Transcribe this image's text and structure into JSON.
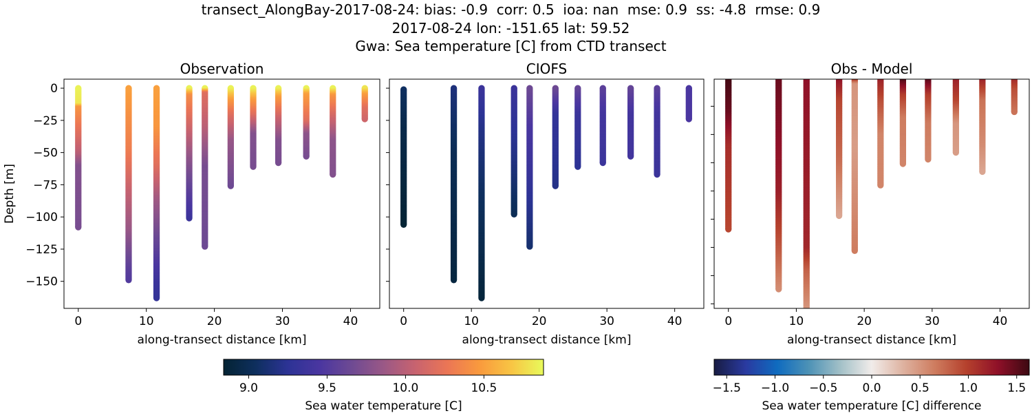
{
  "suptitle": {
    "line1": "transect_AlongBay-2017-08-24: bias: -0.9  corr: 0.5  ioa: nan  mse: 0.9  ss: -4.8  rmse: 0.9",
    "line2": "2017-08-24 lon: -151.65 lat: 59.52",
    "line3": "Gwa: Sea temperature [C] from CTD transect"
  },
  "chart_data": [
    {
      "type": "scatter",
      "title": "Observation",
      "xlabel": "along-transect distance [km]",
      "ylabel": "Depth [m]",
      "xlim": [
        -2.1,
        44.3
      ],
      "ylim": [
        -171,
        7
      ],
      "xticks": [
        0,
        10,
        20,
        30,
        40
      ],
      "yticks": [
        0,
        -25,
        -50,
        -75,
        -100,
        -125,
        -150
      ],
      "ytick_labels_shown": true,
      "colormap": "thermal",
      "casts": [
        {
          "x": 0,
          "profile": [
            [
              0,
              10.85
            ],
            [
              -12,
              10.8
            ],
            [
              -14,
              10.45
            ],
            [
              -30,
              10.25
            ],
            [
              -50,
              10.0
            ],
            [
              -60,
              9.75
            ],
            [
              -108,
              9.7
            ]
          ]
        },
        {
          "x": 7.4,
          "profile": [
            [
              0,
              10.5
            ],
            [
              -50,
              10.3
            ],
            [
              -80,
              10.05
            ],
            [
              -110,
              9.85
            ],
            [
              -140,
              9.55
            ],
            [
              -149,
              9.5
            ]
          ]
        },
        {
          "x": 11.5,
          "profile": [
            [
              0,
              10.5
            ],
            [
              -30,
              10.45
            ],
            [
              -60,
              10.2
            ],
            [
              -85,
              9.9
            ],
            [
              -120,
              9.6
            ],
            [
              -150,
              9.35
            ],
            [
              -163,
              9.3
            ]
          ]
        },
        {
          "x": 16.3,
          "profile": [
            [
              0,
              10.85
            ],
            [
              -5,
              10.4
            ],
            [
              -30,
              10.1
            ],
            [
              -55,
              9.8
            ],
            [
              -75,
              9.6
            ],
            [
              -101,
              9.35
            ]
          ]
        },
        {
          "x": 18.6,
          "profile": [
            [
              0,
              10.85
            ],
            [
              -3,
              10.2
            ],
            [
              -30,
              10.0
            ],
            [
              -60,
              9.7
            ],
            [
              -123,
              9.65
            ]
          ]
        },
        {
          "x": 22.4,
          "profile": [
            [
              0,
              10.85
            ],
            [
              -8,
              10.5
            ],
            [
              -20,
              10.2
            ],
            [
              -40,
              9.85
            ],
            [
              -76,
              9.65
            ]
          ]
        },
        {
          "x": 25.7,
          "profile": [
            [
              0,
              10.85
            ],
            [
              -8,
              10.5
            ],
            [
              -20,
              10.2
            ],
            [
              -35,
              9.75
            ],
            [
              -61,
              9.7
            ]
          ]
        },
        {
          "x": 29.4,
          "profile": [
            [
              0,
              10.85
            ],
            [
              -6,
              10.5
            ],
            [
              -22,
              10.1
            ],
            [
              -40,
              9.75
            ],
            [
              -58,
              9.7
            ]
          ]
        },
        {
          "x": 33.5,
          "profile": [
            [
              0,
              10.85
            ],
            [
              -4,
              10.5
            ],
            [
              -25,
              10.2
            ],
            [
              -35,
              9.8
            ],
            [
              -53,
              9.7
            ]
          ]
        },
        {
          "x": 37.4,
          "profile": [
            [
              0,
              10.85
            ],
            [
              -5,
              10.45
            ],
            [
              -20,
              10.15
            ],
            [
              -40,
              9.8
            ],
            [
              -67,
              9.75
            ]
          ]
        },
        {
          "x": 42.1,
          "profile": [
            [
              0,
              10.8
            ],
            [
              -4,
              10.5
            ],
            [
              -15,
              10.2
            ],
            [
              -24,
              10.1
            ]
          ]
        }
      ]
    },
    {
      "type": "scatter",
      "title": "CIOFS",
      "xlabel": "along-transect distance [km]",
      "xlim": [
        -2.1,
        44.3
      ],
      "ylim": [
        -171,
        7
      ],
      "xticks": [
        0,
        10,
        20,
        30,
        40
      ],
      "yticks": [
        0,
        -25,
        -50,
        -75,
        -100,
        -125,
        -150
      ],
      "ytick_labels_shown": false,
      "colormap": "thermal",
      "casts": [
        {
          "x": 0,
          "profile": [
            [
              -1,
              9.05
            ],
            [
              -30,
              8.95
            ],
            [
              -106,
              8.85
            ]
          ]
        },
        {
          "x": 7.4,
          "profile": [
            [
              0,
              9.15
            ],
            [
              -50,
              9.0
            ],
            [
              -149,
              8.9
            ]
          ]
        },
        {
          "x": 11.5,
          "profile": [
            [
              0,
              9.35
            ],
            [
              -30,
              9.2
            ],
            [
              -80,
              9.05
            ],
            [
              -163,
              8.88
            ]
          ]
        },
        {
          "x": 16.3,
          "profile": [
            [
              0,
              9.35
            ],
            [
              -50,
              9.2
            ],
            [
              -98,
              9.0
            ]
          ]
        },
        {
          "x": 18.6,
          "profile": [
            [
              0,
              9.65
            ],
            [
              -30,
              9.45
            ],
            [
              -60,
              9.35
            ],
            [
              -123,
              9.1
            ]
          ]
        },
        {
          "x": 22.4,
          "profile": [
            [
              0,
              9.65
            ],
            [
              -20,
              9.3
            ],
            [
              -76,
              9.2
            ]
          ]
        },
        {
          "x": 25.7,
          "profile": [
            [
              0,
              9.6
            ],
            [
              -20,
              9.35
            ],
            [
              -61,
              9.25
            ]
          ]
        },
        {
          "x": 29.4,
          "profile": [
            [
              0,
              9.55
            ],
            [
              -20,
              9.4
            ],
            [
              -58,
              9.35
            ]
          ]
        },
        {
          "x": 33.5,
          "profile": [
            [
              0,
              9.6
            ],
            [
              -20,
              9.4
            ],
            [
              -53,
              9.4
            ]
          ]
        },
        {
          "x": 37.4,
          "profile": [
            [
              0,
              9.55
            ],
            [
              -20,
              9.4
            ],
            [
              -67,
              9.35
            ]
          ]
        },
        {
          "x": 42.1,
          "profile": [
            [
              0,
              9.45
            ],
            [
              -24,
              9.45
            ]
          ]
        }
      ]
    },
    {
      "type": "scatter",
      "title": "Obs - Model",
      "xlabel": "along-transect distance [km]",
      "xlim": [
        -2.1,
        44.3
      ],
      "ylim": [
        -204,
        -1
      ],
      "xticks": [
        0,
        10,
        20,
        30,
        40
      ],
      "yticks": [
        -25,
        -50,
        -75,
        -100,
        -125,
        -150,
        -175,
        -200
      ],
      "ytick_labels_shown": false,
      "colormap": "balance",
      "casts": [
        {
          "x": 0,
          "profile": [
            [
              0,
              1.6
            ],
            [
              -30,
              1.45
            ],
            [
              -60,
              1.1
            ],
            [
              -134,
              0.95
            ]
          ]
        },
        {
          "x": 7.4,
          "profile": [
            [
              0,
              1.45
            ],
            [
              -100,
              1.2
            ],
            [
              -150,
              0.85
            ],
            [
              -187,
              0.55
            ]
          ]
        },
        {
          "x": 11.5,
          "profile": [
            [
              0,
              1.3
            ],
            [
              -150,
              1.15
            ],
            [
              -170,
              0.8
            ],
            [
              -210,
              0.45
            ]
          ]
        },
        {
          "x": 16.3,
          "profile": [
            [
              0,
              1.3
            ],
            [
              -20,
              0.95
            ],
            [
              -70,
              0.75
            ],
            [
              -122,
              0.4
            ]
          ]
        },
        {
          "x": 18.6,
          "profile": [
            [
              0,
              1.2
            ],
            [
              -5,
              0.5
            ],
            [
              -60,
              0.45
            ],
            [
              -153,
              0.65
            ]
          ]
        },
        {
          "x": 22.4,
          "profile": [
            [
              0,
              1.2
            ],
            [
              -20,
              0.9
            ],
            [
              -50,
              0.6
            ],
            [
              -95,
              0.6
            ]
          ]
        },
        {
          "x": 25.7,
          "profile": [
            [
              0,
              1.6
            ],
            [
              -15,
              1.0
            ],
            [
              -35,
              0.65
            ],
            [
              -76,
              0.6
            ]
          ]
        },
        {
          "x": 29.4,
          "profile": [
            [
              0,
              1.55
            ],
            [
              -15,
              1.0
            ],
            [
              -40,
              0.65
            ],
            [
              -72,
              0.6
            ]
          ]
        },
        {
          "x": 33.5,
          "profile": [
            [
              0,
              1.2
            ],
            [
              -20,
              0.95
            ],
            [
              -40,
              0.5
            ],
            [
              -66,
              0.45
            ]
          ]
        },
        {
          "x": 37.4,
          "profile": [
            [
              0,
              1.2
            ],
            [
              -20,
              0.7
            ],
            [
              -60,
              0.55
            ],
            [
              -83,
              0.4
            ]
          ]
        },
        {
          "x": 42.1,
          "profile": [
            [
              0,
              1.15
            ],
            [
              -10,
              0.9
            ],
            [
              -30,
              0.7
            ]
          ]
        }
      ]
    }
  ],
  "colorbars": [
    {
      "label": "Sea water temperature [C]",
      "colormap": "thermal",
      "range": [
        8.84,
        10.88
      ],
      "ticks": [
        9.0,
        9.5,
        10.0,
        10.5
      ],
      "tick_labels": [
        "9.0",
        "9.5",
        "10.0",
        "10.5"
      ]
    },
    {
      "label": "Sea water temperature [C] difference",
      "colormap": "balance",
      "range": [
        -1.63,
        1.63
      ],
      "ticks": [
        -1.5,
        -1.0,
        -0.5,
        0.0,
        0.5,
        1.0,
        1.5
      ],
      "tick_labels": [
        "−1.5",
        "−1.0",
        "−0.5",
        "0.0",
        "0.5",
        "1.0",
        "1.5"
      ]
    }
  ],
  "colormaps": {
    "thermal": [
      "#042333",
      "#0e2f5e",
      "#2c3395",
      "#4a36a0",
      "#6e4a93",
      "#9a5886",
      "#c8636f",
      "#eb7655",
      "#f99a3d",
      "#f8c544",
      "#e8fa5b"
    ],
    "balance": [
      "#181c43",
      "#2a3aa0",
      "#0f6bbf",
      "#4d92b6",
      "#a2c0c7",
      "#f1ecea",
      "#deb2a0",
      "#ce7c5f",
      "#b5412d",
      "#8f1028",
      "#3c0912"
    ]
  }
}
